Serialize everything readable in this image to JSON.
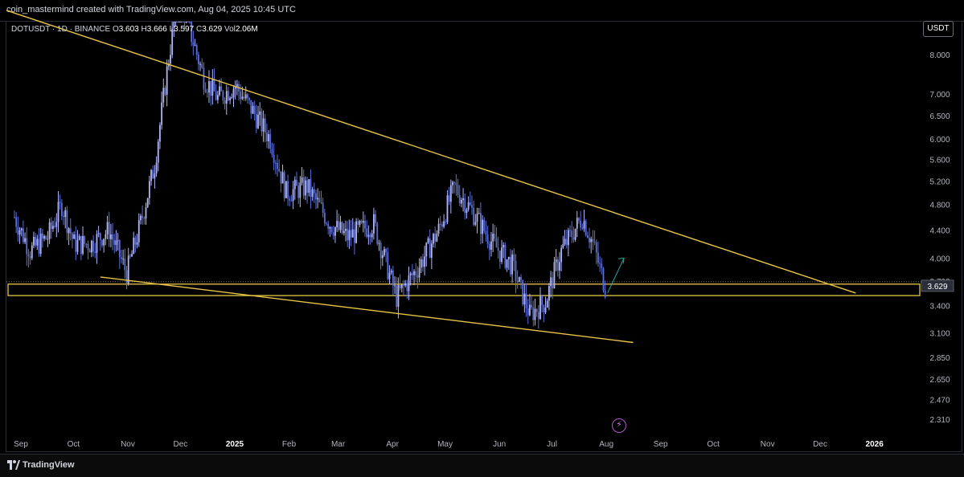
{
  "header": {
    "created_by": "coin_mastermind created with TradingView.com, Aug 04, 2025 10:45 UTC"
  },
  "legend": {
    "symbol": "DOTUSDT · 1D · BINANCE",
    "open_label": "O",
    "open": "3.603",
    "high_label": "H",
    "high": "3.666",
    "low_label": "L",
    "low": "3.597",
    "close_label": "C",
    "close": "3.629",
    "vol_label": "Vol",
    "vol": "2.06M"
  },
  "currency_button": "USDT",
  "footer": {
    "brand": "TradingView"
  },
  "colors": {
    "background": "#000000",
    "candle": "#b2b5f5",
    "candle_alt": "#5b6fd6",
    "trendline": "#e8c547",
    "zone_border": "#e8c547",
    "projection_arrow": "#26a69a",
    "price_label_bg": "#2a2e39",
    "price_dotted_line": "#787b86"
  },
  "icons": {
    "footer_logo": "tradingview-logo-icon",
    "alert": "lightning-bolt-icon"
  },
  "chart_data": {
    "type": "candlestick",
    "title": "DOTUSDT · 1D · BINANCE",
    "scale": "log",
    "ylim": [
      2.25,
      9.0
    ],
    "y_ticks": [
      "8.000",
      "7.000",
      "6.500",
      "6.000",
      "5.600",
      "5.200",
      "4.800",
      "4.400",
      "4.000",
      "3.700",
      "3.400",
      "3.100",
      "2.850",
      "2.650",
      "2.470",
      "2.310"
    ],
    "x_ticks": [
      "Sep",
      "Oct",
      "Nov",
      "Dec",
      "2025",
      "Feb",
      "Mar",
      "Apr",
      "May",
      "Jun",
      "Jul",
      "Aug",
      "Sep",
      "Oct",
      "Nov",
      "Dec",
      "2026"
    ],
    "last_price": "3.629",
    "close_path": [
      [
        "2024-09-01",
        4.6
      ],
      [
        "2024-09-10",
        4.1
      ],
      [
        "2024-09-20",
        4.3
      ],
      [
        "2024-09-28",
        4.8
      ],
      [
        "2024-10-05",
        4.2
      ],
      [
        "2024-10-15",
        4.2
      ],
      [
        "2024-10-25",
        4.4
      ],
      [
        "2024-11-04",
        3.8
      ],
      [
        "2024-11-12",
        4.5
      ],
      [
        "2024-11-20",
        5.5
      ],
      [
        "2024-11-28",
        7.9
      ],
      [
        "2024-12-04",
        10.0
      ],
      [
        "2024-12-10",
        8.7
      ],
      [
        "2024-12-18",
        7.4
      ],
      [
        "2024-12-26",
        6.9
      ],
      [
        "2025-01-05",
        7.2
      ],
      [
        "2025-01-15",
        6.6
      ],
      [
        "2025-01-25",
        6.0
      ],
      [
        "2025-02-03",
        5.0
      ],
      [
        "2025-02-15",
        5.1
      ],
      [
        "2025-02-28",
        4.5
      ],
      [
        "2025-03-10",
        4.3
      ],
      [
        "2025-03-25",
        4.5
      ],
      [
        "2025-04-07",
        3.5
      ],
      [
        "2025-04-20",
        3.9
      ],
      [
        "2025-05-01",
        4.4
      ],
      [
        "2025-05-10",
        5.1
      ],
      [
        "2025-05-20",
        4.7
      ],
      [
        "2025-06-01",
        4.2
      ],
      [
        "2025-06-12",
        3.9
      ],
      [
        "2025-06-22",
        3.3
      ],
      [
        "2025-07-01",
        3.45
      ],
      [
        "2025-07-10",
        4.1
      ],
      [
        "2025-07-22",
        4.6
      ],
      [
        "2025-07-28",
        4.2
      ],
      [
        "2025-08-04",
        3.629
      ]
    ],
    "annotations": {
      "upper_trendline": [
        [
          "2024-08-25",
          9.3
        ],
        [
          "2025-12-25",
          3.55
        ]
      ],
      "lower_trendline": [
        [
          "2024-10-20",
          3.75
        ],
        [
          "2025-08-20",
          3.0
        ]
      ],
      "support_zone": [
        3.52,
        3.66
      ],
      "projection_arrow": [
        [
          "2025-08-04",
          3.55
        ],
        [
          "2025-08-12",
          4.0
        ]
      ]
    }
  }
}
